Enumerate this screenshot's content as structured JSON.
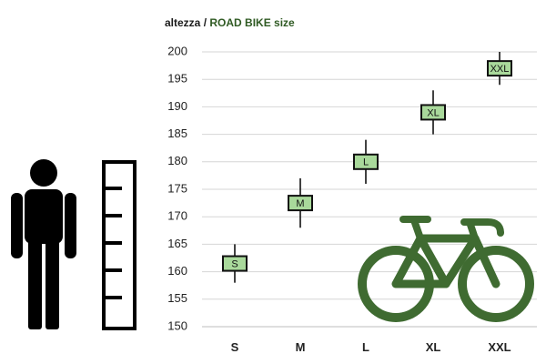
{
  "chart_data": {
    "type": "range",
    "title": {
      "height_word": "altezza",
      "separator": " / ",
      "main": "ROAD BIKE size"
    },
    "ylim": [
      150,
      200
    ],
    "yticks": [
      150,
      155,
      160,
      165,
      170,
      175,
      180,
      185,
      190,
      195,
      200
    ],
    "grid": true,
    "categories": [
      "S",
      "M",
      "L",
      "XL",
      "XXL"
    ],
    "series": [
      {
        "points": [
          {
            "size": "S",
            "min": 158,
            "max": 165,
            "typical": 161.5
          },
          {
            "size": "M",
            "min": 168,
            "max": 177,
            "typical": 172.5
          },
          {
            "size": "L",
            "min": 176,
            "max": 184,
            "typical": 180
          },
          {
            "size": "XL",
            "min": 185,
            "max": 193,
            "typical": 189
          },
          {
            "size": "XXL",
            "min": 194,
            "max": 200,
            "typical": 197
          }
        ]
      }
    ],
    "colors": {
      "box_fill": "#a9d99b",
      "box_stroke": "#111111",
      "bike_icon": "#3f6b31",
      "person_icon": "#000000"
    }
  },
  "icons": [
    "person-icon",
    "ruler-icon",
    "road-bike-icon"
  ]
}
